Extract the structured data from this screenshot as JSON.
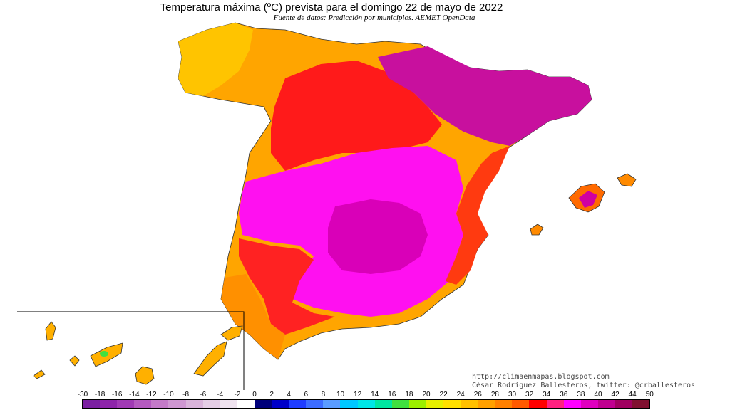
{
  "title": "Temperatura máxima (ºC) prevista para el domingo 22 de mayo de 2022",
  "subtitle": "Fuente de datos: Predicción por municipios. AEMET OpenData",
  "credits": {
    "line1": "http://climaenmapas.blogspot.com",
    "line2": "César Rodríguez Ballesteros, twitter: @crballesteros"
  },
  "legend": {
    "labels": [
      "-30",
      "-18",
      "-16",
      "-14",
      "-12",
      "-10",
      "-8",
      "-6",
      "-4",
      "-2",
      "0",
      "2",
      "4",
      "6",
      "8",
      "10",
      "12",
      "14",
      "16",
      "18",
      "20",
      "22",
      "24",
      "26",
      "28",
      "30",
      "32",
      "34",
      "36",
      "38",
      "40",
      "42",
      "44",
      "50"
    ],
    "colors": [
      "#7b1fa2",
      "#8e24aa",
      "#a13ab5",
      "#b55ac0",
      "#c47ac8",
      "#cf97d2",
      "#d9b3da",
      "#e4cde5",
      "#efe3ef",
      "#ffffff",
      "#00007a",
      "#0000c8",
      "#1e3cff",
      "#3c6cff",
      "#5a9cff",
      "#00c8ff",
      "#00e6e6",
      "#00e6a0",
      "#40e040",
      "#9cf000",
      "#e6f000",
      "#ffe000",
      "#ffc000",
      "#ffa000",
      "#ff8000",
      "#ff5a00",
      "#ff0000",
      "#ff2080",
      "#ff00ff",
      "#e000c0",
      "#c00090",
      "#a00060",
      "#801030"
    ]
  },
  "map_regions": [
    {
      "name": "peninsula-north-west-cool",
      "color": "#ffa800"
    },
    {
      "name": "central-plateau-north",
      "color": "#ff1a1a"
    },
    {
      "name": "ebro-valley",
      "color": "#d000a0"
    },
    {
      "name": "central-south-hot",
      "color": "#ff00ff"
    },
    {
      "name": "coastal-band",
      "color": "#ff6600"
    },
    {
      "name": "balearic-islands",
      "color": "#ff7a00"
    },
    {
      "name": "canary-islands",
      "color": "#ffb000"
    }
  ]
}
